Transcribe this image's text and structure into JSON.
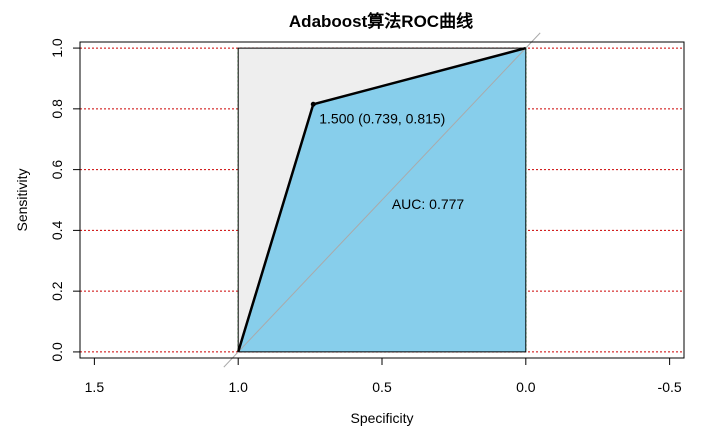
{
  "chart_data": {
    "type": "line",
    "title": "Adaboost算法ROC曲线",
    "xlabel": "Specificity",
    "ylabel": "Sensitivity",
    "x_reversed": true,
    "xlim": [
      1.55,
      -0.55
    ],
    "ylim": [
      -0.02,
      1.02
    ],
    "x_ticks": [
      1.5,
      1.0,
      0.5,
      0.0,
      -0.5
    ],
    "x_tick_labels": [
      "1.5",
      "1.0",
      "0.5",
      "0.0",
      "-0.5"
    ],
    "y_ticks": [
      0.0,
      0.2,
      0.4,
      0.6,
      0.8,
      1.0
    ],
    "y_tick_labels": [
      "0.0",
      "0.2",
      "0.4",
      "0.6",
      "0.8",
      "1.0"
    ],
    "vertical_grid_x": [
      1.0,
      0.9,
      0.8,
      0.7,
      0.6,
      0.5,
      0.4,
      0.3,
      0.2,
      0.1,
      0.0
    ],
    "horizontal_grid_y": [
      0.0,
      0.2,
      0.4,
      0.6,
      0.8,
      1.0
    ],
    "roc_points": [
      {
        "specificity": 1.0,
        "sensitivity": 0.0
      },
      {
        "specificity": 0.739,
        "sensitivity": 0.815
      },
      {
        "specificity": 0.0,
        "sensitivity": 1.0
      }
    ],
    "threshold_point": {
      "specificity": 0.739,
      "sensitivity": 0.815
    },
    "threshold_label": "1.500 (0.739, 0.815)",
    "auc_label": "AUC: 0.777",
    "auc_label_pos": {
      "specificity": 0.34,
      "sensitivity": 0.47
    },
    "colors": {
      "auc_fill": "#87CEEB",
      "background_fill": "#EEEEEE",
      "hgrid": "#CC0000",
      "vgrid": "#00BB00",
      "diagonal": "#AAAAAA",
      "curve": "#000000"
    }
  }
}
